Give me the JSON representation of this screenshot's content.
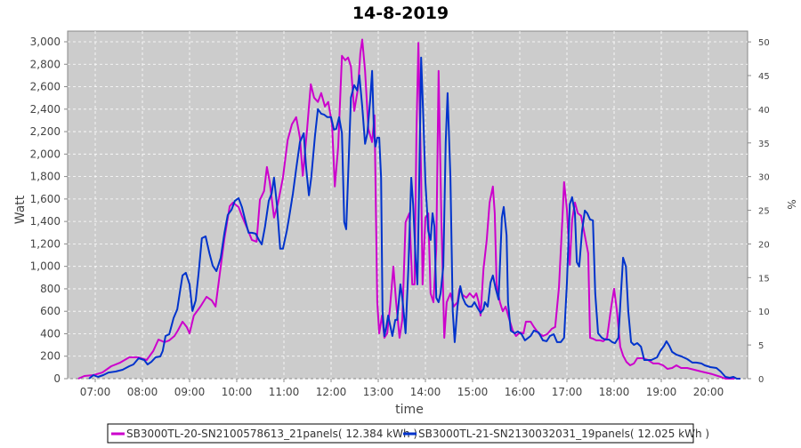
{
  "chart_data": {
    "type": "line",
    "title": "14-8-2019",
    "xlabel": "time",
    "ylabel": "Watt",
    "y2label": "%",
    "xlim_hours": [
      6.415,
      20.83
    ],
    "ylim": [
      0,
      3095
    ],
    "y2lim": [
      0,
      51.6
    ],
    "grid": true,
    "legend_position": "bottom",
    "x_ticks": [
      {
        "h": 7,
        "label": "07:00"
      },
      {
        "h": 8,
        "label": "08:00"
      },
      {
        "h": 9,
        "label": "09:00"
      },
      {
        "h": 10,
        "label": "10:00"
      },
      {
        "h": 11,
        "label": "11:00"
      },
      {
        "h": 12,
        "label": "12:00"
      },
      {
        "h": 13,
        "label": "13:00"
      },
      {
        "h": 14,
        "label": "14:00"
      },
      {
        "h": 15,
        "label": "15:00"
      },
      {
        "h": 16,
        "label": "16:00"
      },
      {
        "h": 17,
        "label": "17:00"
      },
      {
        "h": 18,
        "label": "18:00"
      },
      {
        "h": 19,
        "label": "19:00"
      },
      {
        "h": 20,
        "label": "20:00"
      }
    ],
    "y_ticks": [
      {
        "v": 0,
        "label": "0"
      },
      {
        "v": 200,
        "label": "200"
      },
      {
        "v": 400,
        "label": "400"
      },
      {
        "v": 600,
        "label": "600"
      },
      {
        "v": 800,
        "label": "800"
      },
      {
        "v": 1000,
        "label": "1,000"
      },
      {
        "v": 1200,
        "label": "1,200"
      },
      {
        "v": 1400,
        "label": "1,400"
      },
      {
        "v": 1600,
        "label": "1,600"
      },
      {
        "v": 1800,
        "label": "1,800"
      },
      {
        "v": 2000,
        "label": "2,000"
      },
      {
        "v": 2200,
        "label": "2,200"
      },
      {
        "v": 2400,
        "label": "2,400"
      },
      {
        "v": 2600,
        "label": "2,600"
      },
      {
        "v": 2800,
        "label": "2,800"
      },
      {
        "v": 3000,
        "label": "3,000"
      }
    ],
    "y2_ticks": [
      {
        "v": 0,
        "label": "0"
      },
      {
        "v": 5,
        "label": "5"
      },
      {
        "v": 10,
        "label": "10"
      },
      {
        "v": 15,
        "label": "15"
      },
      {
        "v": 20,
        "label": "20"
      },
      {
        "v": 25,
        "label": "25"
      },
      {
        "v": 30,
        "label": "30"
      },
      {
        "v": 35,
        "label": "35"
      },
      {
        "v": 40,
        "label": "40"
      },
      {
        "v": 45,
        "label": "45"
      },
      {
        "v": 50,
        "label": "50"
      }
    ],
    "series": [
      {
        "name": "SB3000TL-20-SN2100578613_21panels( 12.384 kWh )",
        "color": "#cc00cc",
        "t": [
          6.64,
          6.77,
          6.96,
          7.15,
          7.34,
          7.53,
          7.72,
          7.91,
          8.09,
          8.23,
          8.34,
          8.47,
          8.57,
          8.68,
          8.75,
          8.85,
          8.94,
          9.0,
          9.09,
          9.23,
          9.36,
          9.47,
          9.55,
          9.66,
          9.74,
          9.85,
          9.92,
          10.04,
          10.11,
          10.23,
          10.32,
          10.42,
          10.49,
          10.58,
          10.64,
          10.7,
          10.79,
          10.87,
          10.98,
          11.08,
          11.17,
          11.26,
          11.34,
          11.4,
          11.49,
          11.57,
          11.64,
          11.72,
          11.79,
          11.87,
          11.94,
          12.02,
          12.08,
          12.15,
          12.23,
          12.3,
          12.36,
          12.42,
          12.49,
          12.57,
          12.62,
          12.66,
          12.72,
          12.79,
          12.87,
          12.92,
          12.98,
          13.02,
          13.08,
          13.13,
          13.19,
          13.25,
          13.32,
          13.38,
          13.45,
          13.51,
          13.58,
          13.66,
          13.72,
          13.77,
          13.81,
          13.85,
          13.91,
          13.94,
          14.0,
          14.06,
          14.11,
          14.17,
          14.23,
          14.28,
          14.34,
          14.4,
          14.45,
          14.53,
          14.6,
          14.68,
          14.72,
          14.79,
          14.87,
          14.94,
          15.02,
          15.08,
          15.13,
          15.17,
          15.23,
          15.3,
          15.36,
          15.43,
          15.47,
          15.51,
          15.58,
          15.64,
          15.7,
          15.77,
          15.85,
          15.92,
          16.0,
          16.08,
          16.13,
          16.23,
          16.3,
          16.4,
          16.49,
          16.58,
          16.68,
          16.75,
          16.83,
          16.91,
          16.94,
          17.0,
          17.06,
          17.11,
          17.17,
          17.23,
          17.3,
          17.38,
          17.45,
          17.49,
          17.55,
          17.62,
          17.7,
          17.77,
          17.85,
          17.94,
          18.0,
          18.06,
          18.13,
          18.19,
          18.26,
          18.34,
          18.42,
          18.49,
          18.6,
          18.72,
          18.83,
          18.94,
          19.04,
          19.13,
          19.23,
          19.32,
          19.42,
          19.55,
          19.7,
          19.85,
          20.08,
          20.26,
          20.36,
          20.55
        ],
        "w": [
          0,
          24,
          32,
          55,
          111,
          143,
          190,
          190,
          166,
          246,
          348,
          325,
          341,
          380,
          428,
          507,
          460,
          404,
          562,
          642,
          729,
          697,
          642,
          998,
          1251,
          1536,
          1568,
          1528,
          1449,
          1331,
          1236,
          1220,
          1592,
          1671,
          1885,
          1750,
          1434,
          1553,
          1790,
          2123,
          2265,
          2329,
          2146,
          1806,
          2218,
          2622,
          2503,
          2464,
          2543,
          2424,
          2464,
          2265,
          1711,
          2067,
          2875,
          2835,
          2860,
          2780,
          2384,
          2582,
          2900,
          3020,
          2740,
          2225,
          2107,
          2345,
          681,
          404,
          562,
          364,
          404,
          642,
          998,
          681,
          364,
          523,
          1394,
          1473,
          839,
          839,
          2186,
          2990,
          1790,
          839,
          1434,
          1473,
          760,
          681,
          1156,
          2740,
          1394,
          364,
          681,
          760,
          642,
          681,
          800,
          745,
          721,
          760,
          721,
          760,
          681,
          562,
          974,
          1236,
          1568,
          1711,
          1473,
          840,
          681,
          600,
          642,
          540,
          428,
          380,
          412,
          404,
          507,
          507,
          460,
          404,
          380,
          396,
          444,
          460,
          808,
          1473,
          1750,
          1505,
          1014,
          1410,
          1568,
          1473,
          1450,
          1275,
          1117,
          364,
          356,
          341,
          341,
          333,
          364,
          642,
          800,
          602,
          285,
          206,
          150,
          119,
          135,
          182,
          182,
          166,
          135,
          135,
          119,
          87,
          95,
          119,
          95,
          95,
          79,
          63,
          40,
          16,
          0,
          0
        ]
      },
      {
        "name": "SB3000TL-21-SN2130032031_19panels( 12.025 kWh )",
        "color": "#0033cc",
        "t": [
          6.87,
          6.96,
          7.06,
          7.17,
          7.28,
          7.43,
          7.58,
          7.72,
          7.81,
          7.92,
          8.04,
          8.11,
          8.19,
          8.28,
          8.38,
          8.43,
          8.49,
          8.57,
          8.66,
          8.74,
          8.79,
          8.85,
          8.92,
          9.0,
          9.06,
          9.13,
          9.19,
          9.26,
          9.34,
          9.42,
          9.49,
          9.57,
          9.66,
          9.74,
          9.81,
          9.89,
          9.96,
          10.04,
          10.11,
          10.19,
          10.25,
          10.32,
          10.4,
          10.47,
          10.53,
          10.6,
          10.68,
          10.74,
          10.79,
          10.85,
          10.92,
          10.98,
          11.06,
          11.11,
          11.19,
          11.26,
          11.34,
          11.42,
          11.47,
          11.53,
          11.58,
          11.66,
          11.72,
          11.79,
          11.85,
          11.92,
          12.0,
          12.06,
          12.11,
          12.17,
          12.23,
          12.28,
          12.32,
          12.36,
          12.42,
          12.49,
          12.55,
          12.6,
          12.66,
          12.72,
          12.77,
          12.83,
          12.87,
          12.91,
          12.94,
          12.98,
          13.02,
          13.06,
          13.09,
          13.13,
          13.17,
          13.21,
          13.26,
          13.3,
          13.36,
          13.4,
          13.47,
          13.51,
          13.55,
          13.58,
          13.64,
          13.7,
          13.74,
          13.79,
          13.83,
          13.87,
          13.91,
          13.96,
          14.0,
          14.06,
          14.11,
          14.15,
          14.19,
          14.23,
          14.28,
          14.32,
          14.38,
          14.43,
          14.47,
          14.53,
          14.58,
          14.62,
          14.68,
          14.74,
          14.79,
          14.85,
          14.91,
          14.98,
          15.04,
          15.11,
          15.17,
          15.23,
          15.26,
          15.32,
          15.38,
          15.43,
          15.49,
          15.55,
          15.62,
          15.66,
          15.72,
          15.75,
          15.81,
          15.89,
          15.96,
          16.04,
          16.11,
          16.23,
          16.3,
          16.4,
          16.49,
          16.57,
          16.64,
          16.72,
          16.79,
          16.87,
          16.94,
          17.0,
          17.06,
          17.11,
          17.17,
          17.21,
          17.26,
          17.32,
          17.38,
          17.43,
          17.49,
          17.55,
          17.6,
          17.66,
          17.74,
          17.81,
          17.89,
          17.96,
          18.02,
          18.09,
          18.15,
          18.19,
          18.25,
          18.3,
          18.36,
          18.42,
          18.49,
          18.57,
          18.64,
          18.72,
          18.79,
          18.91,
          18.98,
          19.06,
          19.11,
          19.17,
          19.23,
          19.32,
          19.43,
          19.55,
          19.66,
          19.74,
          19.85,
          19.92,
          20.04,
          20.17,
          20.26,
          20.36,
          20.45,
          20.53,
          20.6,
          20.68
        ],
        "w": [
          0,
          32,
          16,
          32,
          55,
          63,
          79,
          111,
          127,
          182,
          166,
          127,
          150,
          190,
          198,
          246,
          380,
          396,
          539,
          618,
          760,
          919,
          943,
          840,
          602,
          697,
          935,
          1251,
          1267,
          1117,
          1006,
          958,
          1077,
          1299,
          1458,
          1505,
          1584,
          1608,
          1529,
          1394,
          1299,
          1299,
          1291,
          1236,
          1196,
          1355,
          1584,
          1648,
          1790,
          1553,
          1157,
          1157,
          1315,
          1434,
          1648,
          1869,
          2107,
          2186,
          1885,
          1632,
          1790,
          2170,
          2400,
          2360,
          2352,
          2329,
          2329,
          2218,
          2225,
          2329,
          2186,
          1394,
          1331,
          1790,
          2503,
          2614,
          2567,
          2701,
          2424,
          2091,
          2186,
          2487,
          2740,
          2186,
          2067,
          2146,
          2146,
          1790,
          602,
          380,
          460,
          562,
          460,
          380,
          523,
          523,
          840,
          721,
          539,
          404,
          998,
          1790,
          1552,
          1077,
          840,
          1790,
          2860,
          2265,
          1750,
          1315,
          1236,
          1473,
          1355,
          721,
          681,
          760,
          998,
          2107,
          2543,
          1790,
          602,
          325,
          642,
          824,
          721,
          665,
          642,
          642,
          681,
          626,
          586,
          618,
          681,
          642,
          855,
          919,
          800,
          705,
          1434,
          1529,
          1275,
          681,
          428,
          404,
          420,
          396,
          341,
          380,
          428,
          412,
          341,
          333,
          380,
          396,
          325,
          325,
          364,
          855,
          1553,
          1616,
          1473,
          1038,
          998,
          1315,
          1497,
          1473,
          1418,
          1410,
          760,
          404,
          364,
          348,
          348,
          325,
          317,
          364,
          800,
          1077,
          998,
          602,
          325,
          301,
          317,
          285,
          166,
          166,
          166,
          190,
          246,
          293,
          333,
          293,
          238,
          214,
          198,
          174,
          143,
          143,
          135,
          119,
          103,
          95,
          63,
          16,
          8,
          16,
          0,
          0
        ]
      }
    ]
  }
}
